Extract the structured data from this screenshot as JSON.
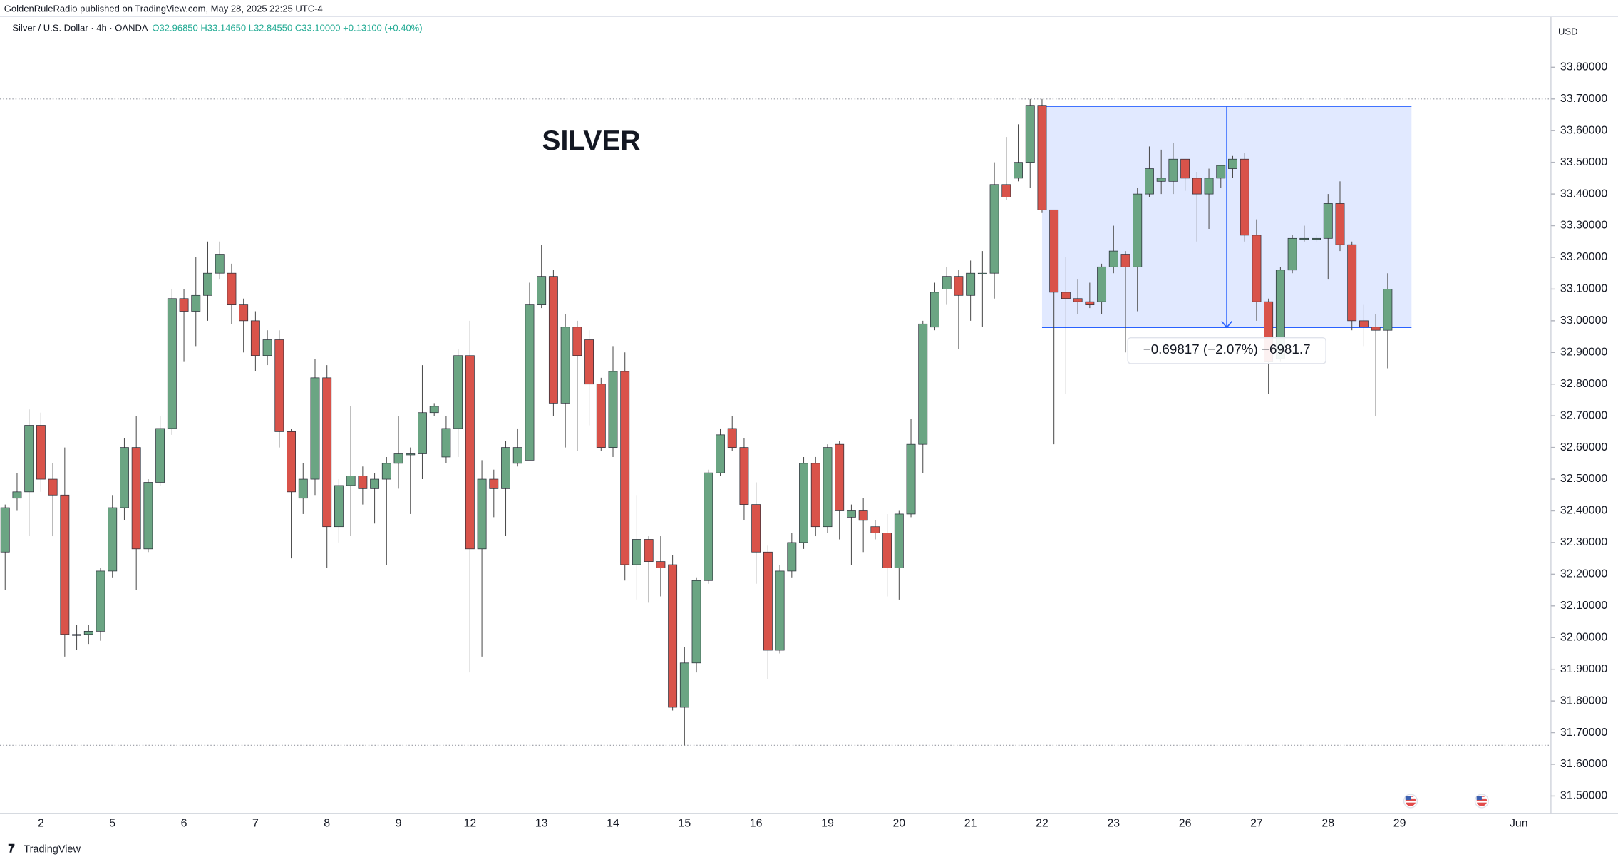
{
  "header": "GoldenRuleRadio published on TradingView.com, May 28, 2025 22:25 UTC-4",
  "legend": {
    "symbol": "Silver / U.S. Dollar · 4h · OANDA",
    "ohlc": "O32.96850 H33.14650 L32.84550 C33.10000 +0.13100 (+0.40%)"
  },
  "brand": "TradingView",
  "chart_data": {
    "type": "candlestick",
    "title": "SILVER",
    "y_axis_label": "USD",
    "up_color": "#6ba583",
    "down_color": "#d9534a",
    "categories": [
      null,
      null,
      null,
      "2",
      null,
      null,
      null,
      null,
      null,
      "5",
      null,
      null,
      null,
      null,
      null,
      "6",
      null,
      null,
      null,
      null,
      null,
      "7",
      null,
      null,
      null,
      null,
      null,
      "8",
      null,
      null,
      null,
      null,
      null,
      "9",
      null,
      null,
      null,
      null,
      null,
      "12",
      null,
      null,
      null,
      null,
      null,
      "13",
      null,
      null,
      null,
      null,
      null,
      "14",
      null,
      null,
      null,
      null,
      null,
      "15",
      null,
      null,
      null,
      null,
      null,
      "16",
      null,
      null,
      null,
      null,
      null,
      "19",
      null,
      null,
      null,
      null,
      null,
      "20",
      null,
      null,
      null,
      null,
      null,
      "21",
      null,
      null,
      null,
      null,
      null,
      "22",
      null,
      null,
      null,
      null,
      null,
      "23",
      null,
      null,
      null,
      null,
      null,
      "26",
      null,
      null,
      null,
      null,
      null,
      "27",
      null,
      null,
      null,
      null,
      null,
      "28",
      null,
      null,
      null,
      null,
      null,
      "29",
      null,
      null,
      null,
      null,
      null,
      null,
      null,
      null,
      null,
      "Jun"
    ],
    "open": [
      32.27,
      32.44,
      32.46,
      32.67,
      32.5,
      32.45,
      32.01,
      32.01,
      32.02,
      32.21,
      32.41,
      32.6,
      32.28,
      32.49,
      32.66,
      33.07,
      33.03,
      33.08,
      33.15,
      33.15,
      33.05,
      33.0,
      32.89,
      32.94,
      32.65,
      32.44,
      32.5,
      32.82,
      32.35,
      32.48,
      32.51,
      32.47,
      32.5,
      32.55,
      32.58,
      32.58,
      32.71,
      32.57,
      32.66,
      32.89,
      32.28,
      32.5,
      32.47,
      32.55,
      32.56,
      33.05,
      33.14,
      32.74,
      32.98,
      32.94,
      32.8,
      32.6,
      32.84,
      32.23,
      32.31,
      32.24,
      32.23,
      31.78,
      31.92,
      32.18,
      32.52,
      32.66,
      32.6,
      32.42,
      32.27,
      31.96,
      32.21,
      32.3,
      32.55,
      32.35,
      32.61,
      32.38,
      32.4,
      32.35,
      32.33,
      32.22,
      32.39,
      32.61,
      32.98,
      33.1,
      33.14,
      33.08,
      33.15,
      33.15,
      33.43,
      33.45,
      33.5,
      33.68,
      33.35,
      33.09,
      33.07,
      33.06,
      33.06,
      33.17,
      33.21,
      33.17,
      33.4,
      33.44,
      33.44,
      33.51,
      33.45,
      33.4,
      33.45,
      33.48,
      33.51,
      33.27,
      33.06,
      32.88,
      33.16,
      33.26,
      33.26,
      33.26,
      33.37,
      33.24,
      33.0,
      32.98,
      32.97,
      null,
      null,
      null,
      null,
      null,
      null,
      null,
      null,
      null,
      null,
      null
    ],
    "high": [
      32.42,
      32.52,
      32.72,
      32.71,
      32.55,
      32.6,
      32.04,
      32.04,
      32.22,
      32.45,
      32.63,
      32.7,
      32.5,
      32.7,
      33.1,
      33.1,
      33.2,
      33.25,
      33.25,
      33.18,
      33.07,
      33.03,
      32.97,
      32.97,
      32.66,
      32.55,
      32.88,
      32.86,
      32.5,
      32.73,
      32.54,
      32.52,
      32.57,
      32.7,
      32.6,
      32.86,
      32.74,
      32.7,
      32.91,
      33.0,
      32.56,
      32.53,
      32.62,
      32.66,
      33.12,
      33.24,
      33.16,
      33.02,
      33.0,
      32.97,
      32.82,
      32.92,
      32.9,
      32.45,
      32.32,
      32.32,
      32.26,
      31.97,
      32.19,
      32.53,
      32.66,
      32.7,
      32.63,
      32.49,
      32.29,
      32.23,
      32.33,
      32.57,
      32.57,
      32.61,
      32.62,
      32.42,
      32.44,
      32.37,
      32.39,
      32.4,
      32.69,
      33.0,
      33.12,
      33.17,
      33.16,
      33.19,
      33.22,
      33.5,
      33.58,
      33.62,
      33.7,
      33.7,
      33.35,
      33.2,
      33.13,
      33.12,
      33.18,
      33.3,
      33.22,
      33.42,
      33.55,
      33.54,
      33.56,
      33.51,
      33.47,
      33.48,
      33.49,
      33.52,
      33.53,
      33.32,
      33.07,
      33.17,
      33.27,
      33.3,
      33.27,
      33.4,
      33.44,
      33.25,
      33.05,
      33.02,
      33.15,
      null,
      null,
      null,
      null,
      null,
      null,
      null,
      null,
      null,
      null,
      null
    ],
    "low": [
      32.15,
      32.4,
      32.32,
      32.46,
      32.32,
      31.94,
      31.96,
      31.98,
      31.99,
      32.19,
      32.37,
      32.15,
      32.27,
      32.48,
      32.64,
      32.87,
      32.92,
      33.0,
      33.13,
      32.99,
      32.9,
      32.84,
      32.86,
      32.6,
      32.25,
      32.39,
      32.45,
      32.22,
      32.3,
      32.32,
      32.42,
      32.36,
      32.23,
      32.47,
      32.39,
      32.5,
      32.7,
      32.55,
      32.57,
      31.89,
      31.94,
      32.38,
      32.32,
      32.54,
      32.56,
      33.04,
      32.7,
      32.6,
      32.59,
      32.67,
      32.59,
      32.57,
      32.18,
      32.12,
      32.11,
      32.13,
      31.77,
      31.66,
      31.89,
      32.17,
      32.51,
      32.59,
      32.37,
      32.17,
      31.87,
      31.95,
      32.19,
      32.28,
      32.32,
      32.33,
      32.31,
      32.23,
      32.27,
      32.31,
      32.13,
      32.12,
      32.38,
      32.52,
      32.97,
      33.05,
      32.91,
      33.0,
      32.98,
      33.07,
      33.38,
      33.44,
      33.42,
      33.34,
      32.61,
      32.77,
      33.02,
      33.04,
      33.02,
      33.15,
      32.9,
      33.03,
      33.39,
      33.4,
      33.4,
      33.41,
      33.25,
      33.29,
      33.42,
      33.45,
      33.25,
      33.0,
      32.77,
      32.87,
      33.15,
      33.25,
      33.25,
      33.13,
      33.22,
      32.97,
      32.92,
      32.7,
      32.85,
      null,
      null,
      null,
      null,
      null,
      null,
      null,
      null,
      null,
      null,
      null
    ],
    "close": [
      32.41,
      32.46,
      32.67,
      32.5,
      32.45,
      32.01,
      32.01,
      32.02,
      32.21,
      32.41,
      32.6,
      32.28,
      32.49,
      32.66,
      33.07,
      33.03,
      33.08,
      33.15,
      33.21,
      33.05,
      33.0,
      32.89,
      32.94,
      32.65,
      32.46,
      32.5,
      32.82,
      32.35,
      32.48,
      32.51,
      32.47,
      32.5,
      32.55,
      32.58,
      32.58,
      32.71,
      32.73,
      32.66,
      32.89,
      32.28,
      32.5,
      32.47,
      32.6,
      32.6,
      33.05,
      33.14,
      32.74,
      32.98,
      32.89,
      32.8,
      32.6,
      32.84,
      32.23,
      32.31,
      32.24,
      32.22,
      31.78,
      31.92,
      32.18,
      32.52,
      32.64,
      32.6,
      32.42,
      32.27,
      31.96,
      32.21,
      32.3,
      32.55,
      32.35,
      32.6,
      32.4,
      32.4,
      32.37,
      32.33,
      32.22,
      32.39,
      32.61,
      32.99,
      33.09,
      33.14,
      33.08,
      33.15,
      33.15,
      33.43,
      33.39,
      33.5,
      33.68,
      33.35,
      33.09,
      33.07,
      33.06,
      33.05,
      33.17,
      33.22,
      33.17,
      33.4,
      33.48,
      33.45,
      33.51,
      33.45,
      33.4,
      33.45,
      33.49,
      33.51,
      33.27,
      33.06,
      32.87,
      33.16,
      33.26,
      33.26,
      33.26,
      33.37,
      33.24,
      33.0,
      32.98,
      32.97,
      33.1,
      null,
      null,
      null,
      null,
      null,
      null,
      null,
      null,
      null,
      null,
      null
    ],
    "ylim": [
      31.445,
      33.96
    ],
    "yticks": [
      {
        "value": 31.5,
        "label": "31.50000"
      },
      {
        "value": 31.6,
        "label": "31.60000"
      },
      {
        "value": 31.7,
        "label": "31.70000"
      },
      {
        "value": 31.8,
        "label": "31.80000"
      },
      {
        "value": 31.9,
        "label": "31.90000"
      },
      {
        "value": 32.0,
        "label": "32.00000"
      },
      {
        "value": 32.1,
        "label": "32.10000"
      },
      {
        "value": 32.2,
        "label": "32.20000"
      },
      {
        "value": 32.3,
        "label": "32.30000"
      },
      {
        "value": 32.4,
        "label": "32.40000"
      },
      {
        "value": 32.5,
        "label": "32.50000"
      },
      {
        "value": 32.6,
        "label": "32.60000"
      },
      {
        "value": 32.7,
        "label": "32.70000"
      },
      {
        "value": 32.8,
        "label": "32.80000"
      },
      {
        "value": 32.9,
        "label": "32.90000"
      },
      {
        "value": 33.0,
        "label": "33.00000"
      },
      {
        "value": 33.1,
        "label": "33.10000"
      },
      {
        "value": 33.2,
        "label": "33.20000"
      },
      {
        "value": 33.3,
        "label": "33.30000"
      },
      {
        "value": 33.4,
        "label": "33.40000"
      },
      {
        "value": 33.5,
        "label": "33.50000"
      },
      {
        "value": 33.6,
        "label": "33.60000"
      },
      {
        "value": 33.7,
        "label": "33.70000"
      },
      {
        "value": 33.8,
        "label": "33.80000"
      }
    ],
    "price_lines": [
      33.7,
      31.66
    ],
    "range_box": {
      "start": 87,
      "end": 118,
      "top": 33.677,
      "bottom": 32.979,
      "color": "#2962ff",
      "label": "−0.69817 (−2.07%) −6981.7"
    },
    "grid": false
  }
}
